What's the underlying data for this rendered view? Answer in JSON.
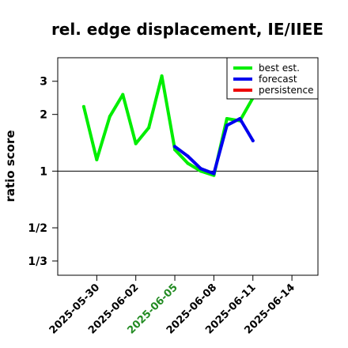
{
  "chart_data": {
    "type": "line",
    "title": "rel. edge displacement, IE/IIEE",
    "xlabel": "",
    "ylabel": "ratio score",
    "y_scale": "log",
    "ylim": [
      0.28,
      4.0
    ],
    "xlim": [
      "2025-05-27",
      "2025-06-16"
    ],
    "y_ticks": [
      {
        "value": 3,
        "label": "3"
      },
      {
        "value": 2,
        "label": "2"
      },
      {
        "value": 1,
        "label": "1"
      },
      {
        "value": 0.5,
        "label": "1/2"
      },
      {
        "value": 0.3333,
        "label": "1/3"
      }
    ],
    "x_ticks": [
      {
        "date": "2025-05-30",
        "label": "2025-05-30",
        "color": "#000000"
      },
      {
        "date": "2025-06-02",
        "label": "2025-06-02",
        "color": "#000000"
      },
      {
        "date": "2025-06-05",
        "label": "2025-06-05",
        "color": "#228B22"
      },
      {
        "date": "2025-06-08",
        "label": "2025-06-08",
        "color": "#000000"
      },
      {
        "date": "2025-06-11",
        "label": "2025-06-11",
        "color": "#000000"
      },
      {
        "date": "2025-06-14",
        "label": "2025-06-14",
        "color": "#000000"
      }
    ],
    "reference_line": 1,
    "legend": {
      "placement": "top-right"
    },
    "series": [
      {
        "name": "best est.",
        "color": "#00ee00",
        "x": [
          "2025-05-29",
          "2025-05-30",
          "2025-05-31",
          "2025-06-01",
          "2025-06-02",
          "2025-06-03",
          "2025-06-04",
          "2025-06-05",
          "2025-06-06",
          "2025-06-07",
          "2025-06-08",
          "2025-06-09",
          "2025-06-10",
          "2025-06-11"
        ],
        "y": [
          2.2,
          1.15,
          1.95,
          2.55,
          1.4,
          1.7,
          3.2,
          1.3,
          1.1,
          1.0,
          0.95,
          1.9,
          1.85,
          2.45
        ]
      },
      {
        "name": "forecast",
        "color": "#0000ee",
        "x": [
          "2025-06-05",
          "2025-06-06",
          "2025-06-07",
          "2025-06-08",
          "2025-06-09",
          "2025-06-10",
          "2025-06-11"
        ],
        "y": [
          1.35,
          1.2,
          1.03,
          0.97,
          1.75,
          1.9,
          1.45
        ]
      },
      {
        "name": "persistence",
        "color": "#ee0000",
        "x": [],
        "y": []
      }
    ]
  }
}
